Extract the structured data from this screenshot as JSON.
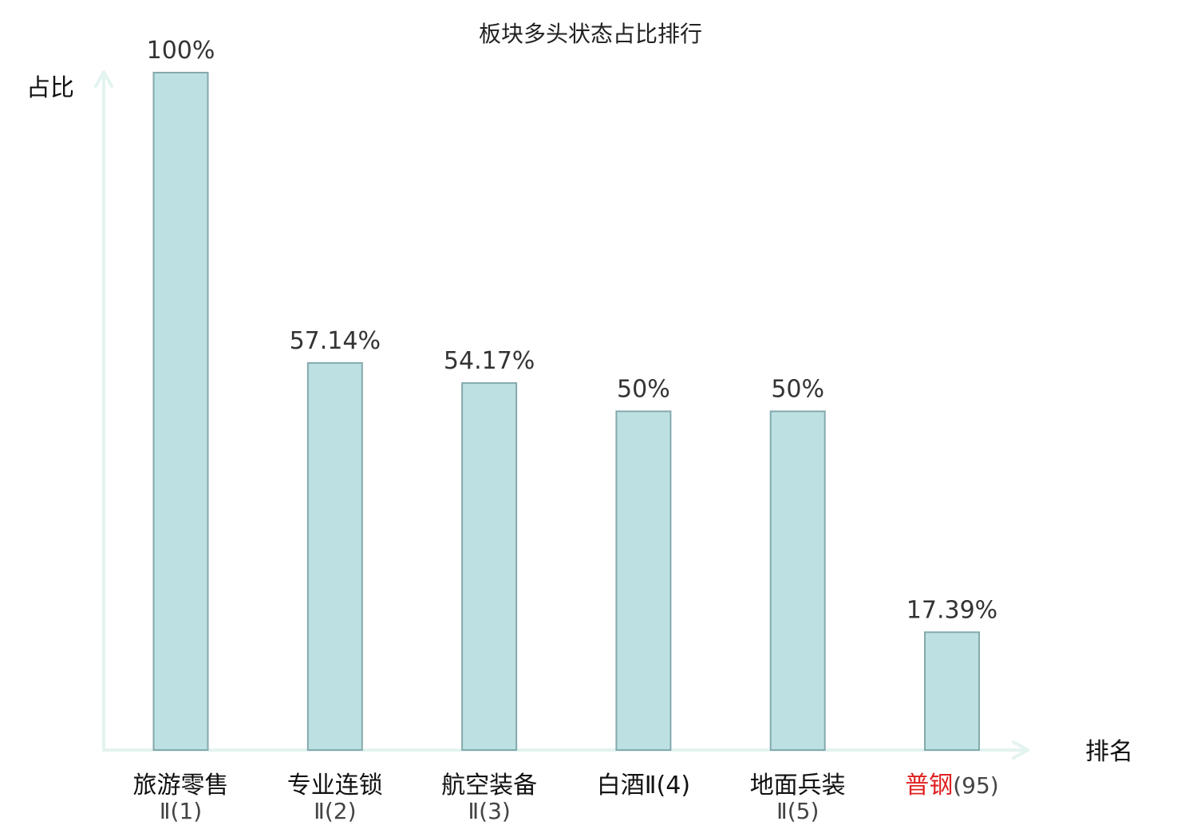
{
  "chart_data": {
    "type": "bar",
    "title": "板块多头状态占比排行",
    "ylabel": "占比",
    "xlabel": "排名",
    "ylim": [
      0,
      100
    ],
    "grid": false,
    "value_suffix": "%",
    "categories": [
      {
        "name": "旅游零售",
        "sub": "Ⅱ(1)",
        "rank": 1
      },
      {
        "name": "专业连锁",
        "sub": "Ⅱ(2)",
        "rank": 2
      },
      {
        "name": "航空装备",
        "sub": "Ⅱ(3)",
        "rank": 3
      },
      {
        "name": "白酒Ⅱ(4)",
        "sub": "",
        "rank": 4
      },
      {
        "name": "地面兵装",
        "sub": "Ⅱ(5)",
        "rank": 5
      },
      {
        "name": "普钢",
        "sub": "(95)",
        "rank": 95
      }
    ],
    "values": [
      100,
      57.14,
      54.17,
      50,
      50,
      17.39
    ],
    "value_labels": [
      "100%",
      "57.14%",
      "54.17%",
      "50%",
      "50%",
      "17.39%"
    ],
    "highlight_index": 5
  },
  "colors": {
    "bar_fill": "#bde0e3",
    "bar_stroke": "#84a9ad",
    "axis": "#e3f3f0",
    "highlight_text": "#e02020",
    "text": "#111111"
  }
}
